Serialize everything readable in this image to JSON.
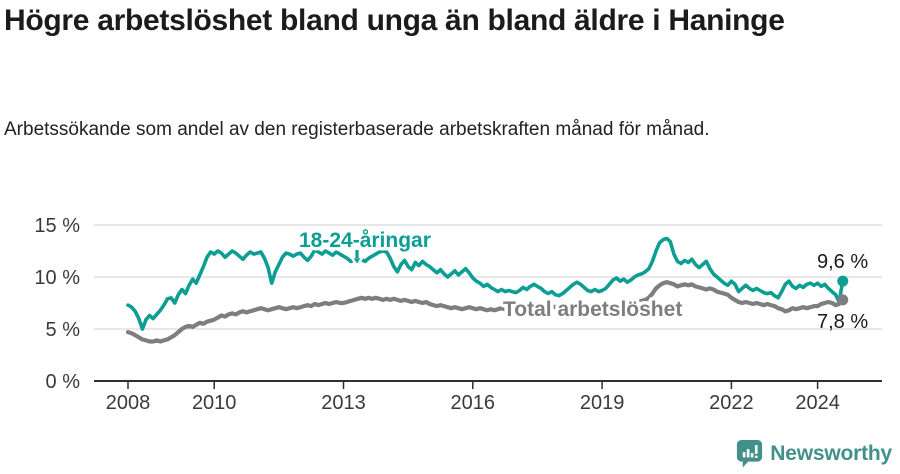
{
  "header": {
    "title": "Högre arbetslöshet bland unga än bland äldre i Haninge",
    "subtitle": "Arbetssökande som andel av den registerbaserade arbetskraften månad för månad."
  },
  "branding": {
    "name": "Newsworthy",
    "logo_icon": "bar-chart-speech-bubble-icon",
    "color": "#43908B"
  },
  "colors": {
    "young_series": "#0D9E93",
    "total_series": "#7E7E7E",
    "axis_line": "#2f2f2f",
    "grid_line": "#dadada",
    "tick_text": "#3a3a3a",
    "value_label_text": "#1a1a1a",
    "background": "#ffffff"
  },
  "chart_data": {
    "type": "line",
    "title": "Högre arbetslöshet bland unga än bland äldre i Haninge",
    "subtitle": "Arbetssökande som andel av den registerbaserade arbetskraften månad för månad.",
    "unit": "%",
    "frequency": "monthly",
    "x_start": "2008-01",
    "x_end": "2024-08",
    "ylim": [
      0,
      15
    ],
    "yticks": [
      0,
      5,
      10,
      15
    ],
    "ytick_labels": [
      "0 %",
      "5 %",
      "10 %",
      "15 %"
    ],
    "xticks": [
      2008,
      2010,
      2013,
      2016,
      2019,
      2022,
      2024
    ],
    "grid": true,
    "legend_position": "inline-labels",
    "series": [
      {
        "name": "18-24-åringar",
        "color": "#0D9E93",
        "end_label": "9,6 %",
        "end_value": 9.6,
        "values": [
          7.3,
          7.1,
          6.7,
          6.0,
          5.0,
          5.9,
          6.3,
          6.0,
          6.4,
          6.8,
          7.3,
          7.9,
          8.0,
          7.5,
          8.3,
          8.8,
          8.4,
          9.2,
          9.8,
          9.4,
          10.2,
          11.0,
          11.9,
          12.4,
          12.2,
          12.5,
          12.3,
          11.9,
          12.2,
          12.5,
          12.3,
          12.0,
          11.7,
          12.1,
          12.4,
          12.2,
          12.3,
          12.4,
          11.8,
          10.9,
          9.4,
          10.5,
          11.2,
          11.9,
          12.3,
          12.2,
          12.0,
          12.2,
          12.3,
          11.9,
          11.6,
          12.0,
          12.6,
          12.4,
          12.2,
          12.5,
          12.3,
          12.1,
          12.4,
          12.2,
          12.0,
          11.8,
          11.5,
          11.6,
          11.4,
          11.7,
          11.5,
          11.8,
          12.0,
          12.2,
          12.4,
          12.5,
          12.4,
          11.8,
          11.0,
          10.5,
          11.2,
          11.6,
          11.0,
          10.7,
          11.4,
          11.1,
          11.5,
          11.2,
          11.0,
          10.7,
          10.4,
          10.7,
          10.3,
          10.0,
          10.3,
          10.6,
          10.2,
          10.5,
          10.8,
          10.4,
          9.9,
          9.6,
          9.4,
          9.1,
          9.3,
          9.0,
          8.8,
          8.6,
          8.8,
          8.6,
          8.7,
          8.6,
          8.5,
          8.7,
          9.0,
          8.8,
          9.1,
          9.3,
          9.1,
          8.9,
          8.6,
          8.4,
          8.6,
          8.3,
          8.2,
          8.4,
          8.7,
          9.0,
          9.3,
          9.5,
          9.3,
          9.0,
          8.7,
          8.6,
          8.8,
          8.6,
          8.7,
          8.9,
          9.3,
          9.7,
          9.9,
          9.6,
          9.8,
          9.5,
          9.7,
          10.0,
          10.2,
          10.3,
          10.5,
          10.8,
          11.5,
          12.5,
          13.3,
          13.6,
          13.7,
          13.4,
          12.2,
          11.5,
          11.3,
          11.6,
          11.4,
          11.7,
          11.2,
          10.9,
          11.2,
          11.5,
          10.8,
          10.3,
          10.0,
          9.7,
          9.4,
          9.2,
          9.6,
          9.3,
          8.6,
          8.9,
          9.2,
          8.9,
          8.7,
          8.9,
          8.7,
          8.5,
          8.4,
          8.5,
          8.2,
          8.0,
          8.6,
          9.3,
          9.6,
          9.1,
          8.9,
          9.2,
          9.0,
          9.3,
          9.4,
          9.2,
          9.4,
          9.1,
          9.3,
          8.9,
          8.6,
          8.3,
          7.6,
          9.6
        ]
      },
      {
        "name": "Total arbetslöshet",
        "color": "#7E7E7E",
        "end_label": "7,8 %",
        "end_value": 7.8,
        "values": [
          4.7,
          4.6,
          4.4,
          4.2,
          4.0,
          3.9,
          3.8,
          3.8,
          3.9,
          3.8,
          3.9,
          4.0,
          4.2,
          4.4,
          4.7,
          5.0,
          5.2,
          5.3,
          5.2,
          5.4,
          5.6,
          5.5,
          5.7,
          5.8,
          5.9,
          6.1,
          6.3,
          6.2,
          6.4,
          6.5,
          6.4,
          6.6,
          6.7,
          6.6,
          6.7,
          6.8,
          6.9,
          7.0,
          6.9,
          6.8,
          6.9,
          7.0,
          7.1,
          7.0,
          6.9,
          7.0,
          7.1,
          7.0,
          7.1,
          7.2,
          7.3,
          7.2,
          7.4,
          7.3,
          7.4,
          7.5,
          7.4,
          7.5,
          7.6,
          7.5,
          7.5,
          7.6,
          7.7,
          7.8,
          7.9,
          8.0,
          7.9,
          8.0,
          7.9,
          8.0,
          7.9,
          7.8,
          7.9,
          7.8,
          7.9,
          7.8,
          7.7,
          7.8,
          7.7,
          7.6,
          7.7,
          7.6,
          7.5,
          7.6,
          7.4,
          7.3,
          7.2,
          7.3,
          7.2,
          7.1,
          7.0,
          7.1,
          7.0,
          6.9,
          7.0,
          7.1,
          7.0,
          6.9,
          7.0,
          6.9,
          6.8,
          6.9,
          6.8,
          6.9,
          7.0,
          6.9,
          7.0,
          6.9,
          7.0,
          7.1,
          7.0,
          7.1,
          7.0,
          6.9,
          7.0,
          7.1,
          7.0,
          7.1,
          7.2,
          7.1,
          7.0,
          7.1,
          7.0,
          6.9,
          7.0,
          6.9,
          6.8,
          6.9,
          7.0,
          6.9,
          7.0,
          7.1,
          7.0,
          7.1,
          7.2,
          7.1,
          7.2,
          7.3,
          7.2,
          7.3,
          7.4,
          7.5,
          7.6,
          7.7,
          7.8,
          8.0,
          8.4,
          8.9,
          9.2,
          9.4,
          9.5,
          9.4,
          9.3,
          9.1,
          9.2,
          9.3,
          9.2,
          9.3,
          9.1,
          9.0,
          8.9,
          8.8,
          8.9,
          8.8,
          8.6,
          8.5,
          8.4,
          8.3,
          8.0,
          7.8,
          7.6,
          7.5,
          7.6,
          7.5,
          7.4,
          7.5,
          7.4,
          7.3,
          7.4,
          7.3,
          7.2,
          7.0,
          6.9,
          6.7,
          6.8,
          7.0,
          6.9,
          7.0,
          7.1,
          7.0,
          7.1,
          7.2,
          7.2,
          7.4,
          7.5,
          7.6,
          7.5,
          7.3,
          7.4,
          7.8
        ]
      }
    ]
  }
}
